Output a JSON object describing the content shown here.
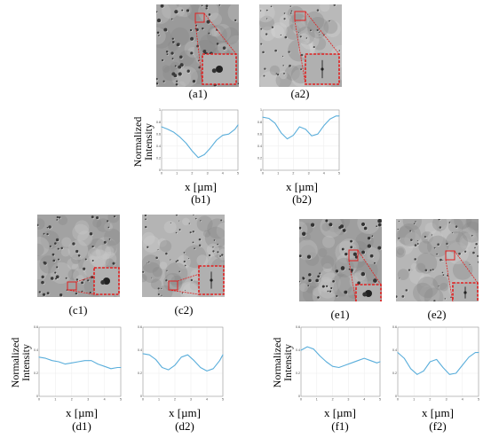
{
  "y_axis_title": "Normalized\nIntensity",
  "x_axis_title": "x [µm]",
  "figures": [
    {
      "id": "a1",
      "label": "(a1)"
    },
    {
      "id": "a2",
      "label": "(a2)"
    },
    {
      "id": "c1",
      "label": "(c1)"
    },
    {
      "id": "c2",
      "label": "(c2)"
    },
    {
      "id": "e1",
      "label": "(e1)"
    },
    {
      "id": "e2",
      "label": "(e2)"
    }
  ],
  "chart_data": [
    {
      "id": "b1",
      "type": "line",
      "label": "(b1)",
      "ylabel": "Normalized\nIntensity",
      "xlabel": "x [µm]",
      "xlim": [
        0,
        5
      ],
      "ylim": [
        0,
        1
      ],
      "xticks": [
        0,
        1,
        2,
        3,
        4,
        5
      ],
      "yticks": [
        0,
        0.2,
        0.4,
        0.6,
        0.8,
        1
      ],
      "x": [
        0,
        0.4,
        0.8,
        1.2,
        1.6,
        2.0,
        2.4,
        2.8,
        3.2,
        3.6,
        4.0,
        4.4,
        4.8,
        5.0
      ],
      "y": [
        0.72,
        0.68,
        0.63,
        0.55,
        0.45,
        0.32,
        0.21,
        0.26,
        0.37,
        0.5,
        0.58,
        0.6,
        0.68,
        0.75
      ],
      "color": "#5aaedb"
    },
    {
      "id": "b2",
      "type": "line",
      "label": "(b2)",
      "ylabel": "",
      "xlabel": "x [µm]",
      "xlim": [
        0,
        5
      ],
      "ylim": [
        0,
        1
      ],
      "xticks": [
        0,
        1,
        2,
        3,
        4,
        5
      ],
      "yticks": [
        0,
        0.2,
        0.4,
        0.6,
        0.8,
        1
      ],
      "x": [
        0,
        0.4,
        0.8,
        1.2,
        1.6,
        2.0,
        2.4,
        2.8,
        3.2,
        3.6,
        4.0,
        4.4,
        4.8,
        5.0
      ],
      "y": [
        0.88,
        0.86,
        0.78,
        0.62,
        0.52,
        0.58,
        0.72,
        0.68,
        0.57,
        0.6,
        0.74,
        0.85,
        0.9,
        0.9
      ],
      "color": "#5aaedb"
    },
    {
      "id": "d1",
      "type": "line",
      "label": "(d1)",
      "ylabel": "Normalized\nIntensity",
      "xlabel": "x [µm]",
      "xlim": [
        0,
        5
      ],
      "ylim": [
        0,
        0.6
      ],
      "xticks": [
        0,
        1,
        2,
        3,
        4,
        5
      ],
      "yticks": [
        0,
        0.2,
        0.4,
        0.6
      ],
      "x": [
        0,
        0.4,
        0.8,
        1.2,
        1.6,
        2.0,
        2.4,
        2.8,
        3.2,
        3.6,
        4.0,
        4.4,
        4.8,
        5.0
      ],
      "y": [
        0.34,
        0.33,
        0.31,
        0.3,
        0.28,
        0.29,
        0.3,
        0.31,
        0.31,
        0.28,
        0.26,
        0.24,
        0.25,
        0.25
      ],
      "color": "#5aaedb"
    },
    {
      "id": "d2",
      "type": "line",
      "label": "(d2)",
      "ylabel": "",
      "xlabel": "x [µm]",
      "xlim": [
        0,
        5
      ],
      "ylim": [
        0,
        0.6
      ],
      "xticks": [
        0,
        1,
        2,
        3,
        4,
        5
      ],
      "yticks": [
        0,
        0.2,
        0.4,
        0.6
      ],
      "x": [
        0,
        0.4,
        0.8,
        1.2,
        1.6,
        2.0,
        2.4,
        2.8,
        3.2,
        3.6,
        4.0,
        4.4,
        4.8,
        5.0
      ],
      "y": [
        0.37,
        0.36,
        0.32,
        0.25,
        0.23,
        0.27,
        0.34,
        0.36,
        0.31,
        0.25,
        0.22,
        0.24,
        0.31,
        0.36
      ],
      "color": "#5aaedb"
    },
    {
      "id": "f1",
      "type": "line",
      "label": "(f1)",
      "ylabel": "Normalized\nIntensity",
      "xlabel": "x [µm]",
      "xlim": [
        0,
        5
      ],
      "ylim": [
        0,
        0.6
      ],
      "xticks": [
        0,
        1,
        2,
        3,
        4,
        5
      ],
      "yticks": [
        0,
        0.2,
        0.4,
        0.6
      ],
      "x": [
        0,
        0.4,
        0.8,
        1.2,
        1.6,
        2.0,
        2.4,
        2.8,
        3.2,
        3.6,
        4.0,
        4.4,
        4.8,
        5.0
      ],
      "y": [
        0.4,
        0.43,
        0.41,
        0.35,
        0.3,
        0.26,
        0.25,
        0.27,
        0.29,
        0.31,
        0.33,
        0.31,
        0.29,
        0.3
      ],
      "color": "#5aaedb"
    },
    {
      "id": "f2",
      "type": "line",
      "label": "(f2)",
      "ylabel": "",
      "xlabel": "x [µm]",
      "xlim": [
        0,
        5
      ],
      "ylim": [
        0,
        0.6
      ],
      "xticks": [
        0,
        1,
        2,
        3,
        4,
        5
      ],
      "yticks": [
        0,
        0.2,
        0.4,
        0.6
      ],
      "x": [
        0,
        0.4,
        0.8,
        1.2,
        1.6,
        2.0,
        2.4,
        2.8,
        3.2,
        3.6,
        4.0,
        4.4,
        4.8,
        5.0
      ],
      "y": [
        0.38,
        0.33,
        0.24,
        0.19,
        0.22,
        0.3,
        0.32,
        0.25,
        0.19,
        0.2,
        0.27,
        0.34,
        0.38,
        0.38
      ],
      "color": "#5aaedb"
    }
  ]
}
